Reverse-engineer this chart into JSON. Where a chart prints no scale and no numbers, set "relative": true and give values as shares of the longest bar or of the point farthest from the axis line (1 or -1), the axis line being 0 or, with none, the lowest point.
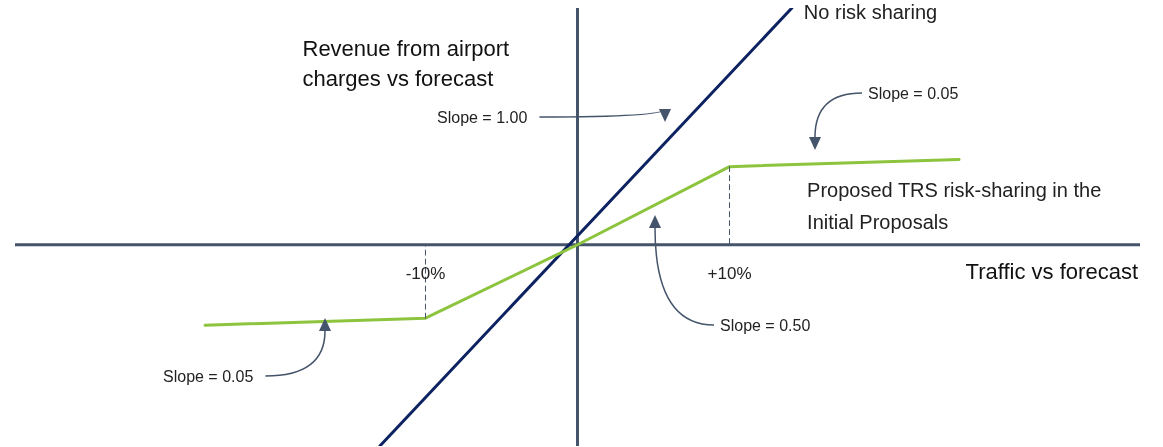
{
  "chart_data": {
    "type": "line",
    "relative": true,
    "ylabel": "Revenue from airport charges vs forecast",
    "xlabel": "Traffic vs forecast",
    "xlim": [
      -37,
      37
    ],
    "xticks": [
      {
        "value": -10,
        "label": "-10%"
      },
      {
        "value": 10,
        "label": "+10%"
      }
    ],
    "tick_labels": "x",
    "marker": "none",
    "line_style": "solid",
    "series": [
      {
        "name": "No risk sharing",
        "color": "#0d2260",
        "x": [
          -13,
          14.1
        ],
        "values": [
          -0.85,
          1
        ]
      },
      {
        "name": "Proposed TRS risk-sharing in the Initial Proposals",
        "color": "#8dc43e",
        "x": [
          -24.5,
          -10,
          0,
          10,
          25.1
        ],
        "values": [
          -0.34,
          -0.31,
          0,
          0.33,
          0.36
        ]
      },
      {
        "color": "#44546a",
        "line_style": "dashed",
        "x": [
          -10,
          -10
        ],
        "values": [
          -0.31,
          0
        ]
      },
      {
        "color": "#44546a",
        "line_style": "dashed",
        "x": [
          10,
          10
        ],
        "values": [
          0.33,
          0
        ]
      }
    ],
    "annotations": [
      "Slope = 1.00",
      "Slope = 0.05",
      "Slope = 0.50",
      "Slope = 0.05"
    ]
  }
}
